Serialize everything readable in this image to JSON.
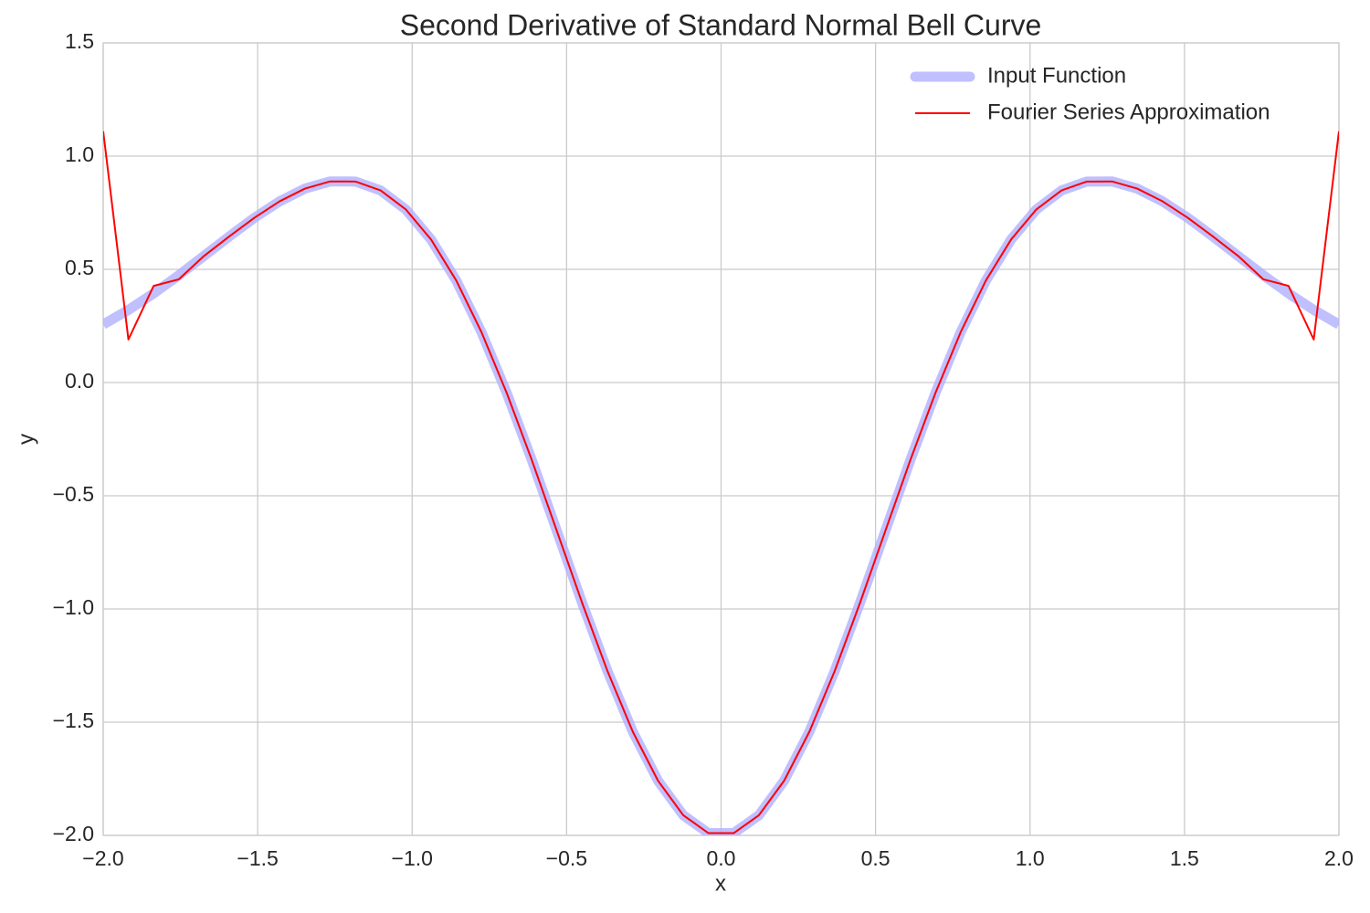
{
  "chart_data": {
    "type": "line",
    "title": "Second Derivative of Standard Normal Bell Curve",
    "x_label": "x",
    "y_label": "y",
    "x": [
      -2.0,
      -1.9184,
      -1.8367,
      -1.7551,
      -1.6735,
      -1.5918,
      -1.5102,
      -1.4286,
      -1.3469,
      -1.2653,
      -1.1837,
      -1.102,
      -1.0204,
      -0.9388,
      -0.8571,
      -0.7755,
      -0.6939,
      -0.6122,
      -0.5306,
      -0.449,
      -0.3673,
      -0.2857,
      -0.2041,
      -0.1224,
      -0.0408,
      0.0408,
      0.1224,
      0.2041,
      0.2857,
      0.3673,
      0.449,
      0.5306,
      0.6122,
      0.6939,
      0.7755,
      0.8571,
      0.9388,
      1.0204,
      1.102,
      1.1837,
      1.2653,
      1.3469,
      1.4286,
      1.5102,
      1.5918,
      1.6735,
      1.7551,
      1.8367,
      1.9184,
      2.0
    ],
    "series": [
      {
        "name": "Input Function",
        "color": "#b0b0ff",
        "linewidth": 11,
        "opacity": 0.8,
        "values": [
          0.2564,
          0.3208,
          0.3938,
          0.4742,
          0.5593,
          0.6455,
          0.728,
          0.8007,
          0.8566,
          0.8883,
          0.8878,
          0.8484,
          0.7643,
          0.6318,
          0.4503,
          0.2223,
          -0.0458,
          -0.3441,
          -0.6594,
          -0.9758,
          -1.2759,
          -1.5423,
          -1.7586,
          -1.9111,
          -1.99,
          -1.99,
          -1.9111,
          -1.7586,
          -1.5423,
          -1.2759,
          -0.9758,
          -0.6594,
          -0.3441,
          -0.0458,
          0.2223,
          0.4503,
          0.6318,
          0.7643,
          0.8484,
          0.8878,
          0.8883,
          0.8566,
          0.8007,
          0.728,
          0.6455,
          0.5593,
          0.4742,
          0.3938,
          0.3208,
          0.2564
        ]
      },
      {
        "name": "Fourier Series Approximation",
        "color": "#ff0000",
        "linewidth": 2,
        "opacity": 1,
        "values": [
          1.11,
          0.19,
          0.427,
          0.456,
          0.5593,
          0.6455,
          0.728,
          0.8007,
          0.8566,
          0.8883,
          0.8878,
          0.8484,
          0.7643,
          0.6318,
          0.4503,
          0.2223,
          -0.0458,
          -0.3441,
          -0.6594,
          -0.9758,
          -1.2759,
          -1.5423,
          -1.7586,
          -1.9111,
          -1.99,
          -1.99,
          -1.9111,
          -1.7586,
          -1.5423,
          -1.2759,
          -0.9758,
          -0.6594,
          -0.3441,
          -0.0458,
          0.2223,
          0.4503,
          0.6318,
          0.7643,
          0.8484,
          0.8878,
          0.8883,
          0.8566,
          0.8007,
          0.728,
          0.6455,
          0.5593,
          0.456,
          0.427,
          0.19,
          1.11
        ]
      }
    ],
    "xlim": [
      -2,
      2
    ],
    "xticks": [
      {
        "value": -2,
        "label": "−2.0"
      },
      {
        "value": -1.5,
        "label": "−1.5"
      },
      {
        "value": -1,
        "label": "−1.0"
      },
      {
        "value": -0.5,
        "label": "−0.5"
      },
      {
        "value": 0,
        "label": "0.0"
      },
      0.5,
      {
        "value": 1,
        "label": "1.0"
      },
      1.5,
      {
        "value": 2,
        "label": "2.0"
      }
    ],
    "ylim": [
      -2,
      1.5
    ],
    "yticks": [
      {
        "value": -2,
        "label": "−2.0"
      },
      {
        "value": -1.5,
        "label": "−1.5"
      },
      {
        "value": -1,
        "label": "−1.0"
      },
      {
        "value": -0.5,
        "label": "−0.5"
      },
      {
        "value": 0,
        "label": "0.0"
      },
      0.5,
      {
        "value": 1,
        "label": "1.0"
      },
      1.5
    ],
    "grid": true,
    "legend": "upper right"
  }
}
